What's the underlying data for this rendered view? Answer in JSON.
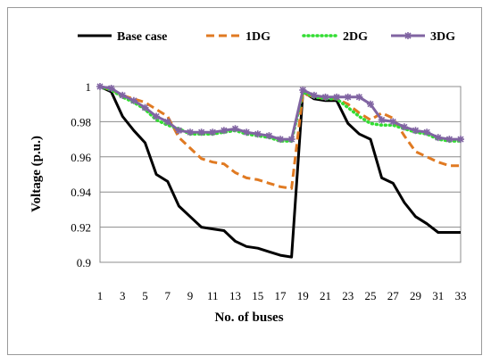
{
  "chart_data": {
    "type": "line",
    "xlabel": "No. of buses",
    "ylabel": "Voltage (p.u.)",
    "xlim": [
      1,
      33
    ],
    "ylim": [
      0.9,
      1.0
    ],
    "y_ticks": [
      "0.9",
      "0.92",
      "0.94",
      "0.96",
      "0.98",
      "1"
    ],
    "x_ticks": [
      "1",
      "3",
      "5",
      "7",
      "9",
      "11",
      "13",
      "15",
      "17",
      "19",
      "21",
      "23",
      "25",
      "27",
      "29",
      "31",
      "33"
    ],
    "grid": "horizontal",
    "legend_position": "top",
    "x": [
      1,
      2,
      3,
      4,
      5,
      6,
      7,
      8,
      9,
      10,
      11,
      12,
      13,
      14,
      15,
      16,
      17,
      18,
      19,
      20,
      21,
      22,
      23,
      24,
      25,
      26,
      27,
      28,
      29,
      30,
      31,
      32,
      33
    ],
    "series": [
      {
        "name": "Base case",
        "color": "#000000",
        "style": "solid",
        "values": [
          1.0,
          0.997,
          0.983,
          0.975,
          0.968,
          0.95,
          0.946,
          0.932,
          0.926,
          0.92,
          0.919,
          0.918,
          0.912,
          0.909,
          0.908,
          0.906,
          0.904,
          0.903,
          0.997,
          0.993,
          0.992,
          0.992,
          0.979,
          0.973,
          0.97,
          0.948,
          0.945,
          0.934,
          0.926,
          0.922,
          0.917,
          0.917,
          0.917
        ]
      },
      {
        "name": "1DG",
        "color": "#E07A22",
        "style": "dashed",
        "values": [
          1.0,
          0.998,
          0.995,
          0.993,
          0.991,
          0.987,
          0.983,
          0.971,
          0.965,
          0.959,
          0.957,
          0.956,
          0.951,
          0.948,
          0.947,
          0.945,
          0.943,
          0.942,
          0.996,
          0.994,
          0.993,
          0.993,
          0.99,
          0.985,
          0.981,
          0.985,
          0.982,
          0.972,
          0.963,
          0.96,
          0.957,
          0.955,
          0.955
        ]
      },
      {
        "name": "2DG",
        "color": "#33DD33",
        "style": "dotted",
        "values": [
          1.0,
          0.998,
          0.994,
          0.991,
          0.987,
          0.981,
          0.978,
          0.976,
          0.973,
          0.973,
          0.973,
          0.974,
          0.975,
          0.973,
          0.972,
          0.971,
          0.969,
          0.969,
          0.997,
          0.994,
          0.993,
          0.993,
          0.988,
          0.983,
          0.979,
          0.978,
          0.978,
          0.976,
          0.974,
          0.973,
          0.97,
          0.969,
          0.969
        ]
      },
      {
        "name": "3DG",
        "color": "#8064A2",
        "style": "solid-marker",
        "values": [
          1.0,
          0.999,
          0.995,
          0.992,
          0.988,
          0.983,
          0.98,
          0.975,
          0.974,
          0.974,
          0.974,
          0.975,
          0.976,
          0.974,
          0.973,
          0.972,
          0.97,
          0.97,
          0.998,
          0.995,
          0.994,
          0.994,
          0.994,
          0.994,
          0.99,
          0.981,
          0.98,
          0.977,
          0.975,
          0.974,
          0.971,
          0.97,
          0.97
        ]
      }
    ]
  }
}
